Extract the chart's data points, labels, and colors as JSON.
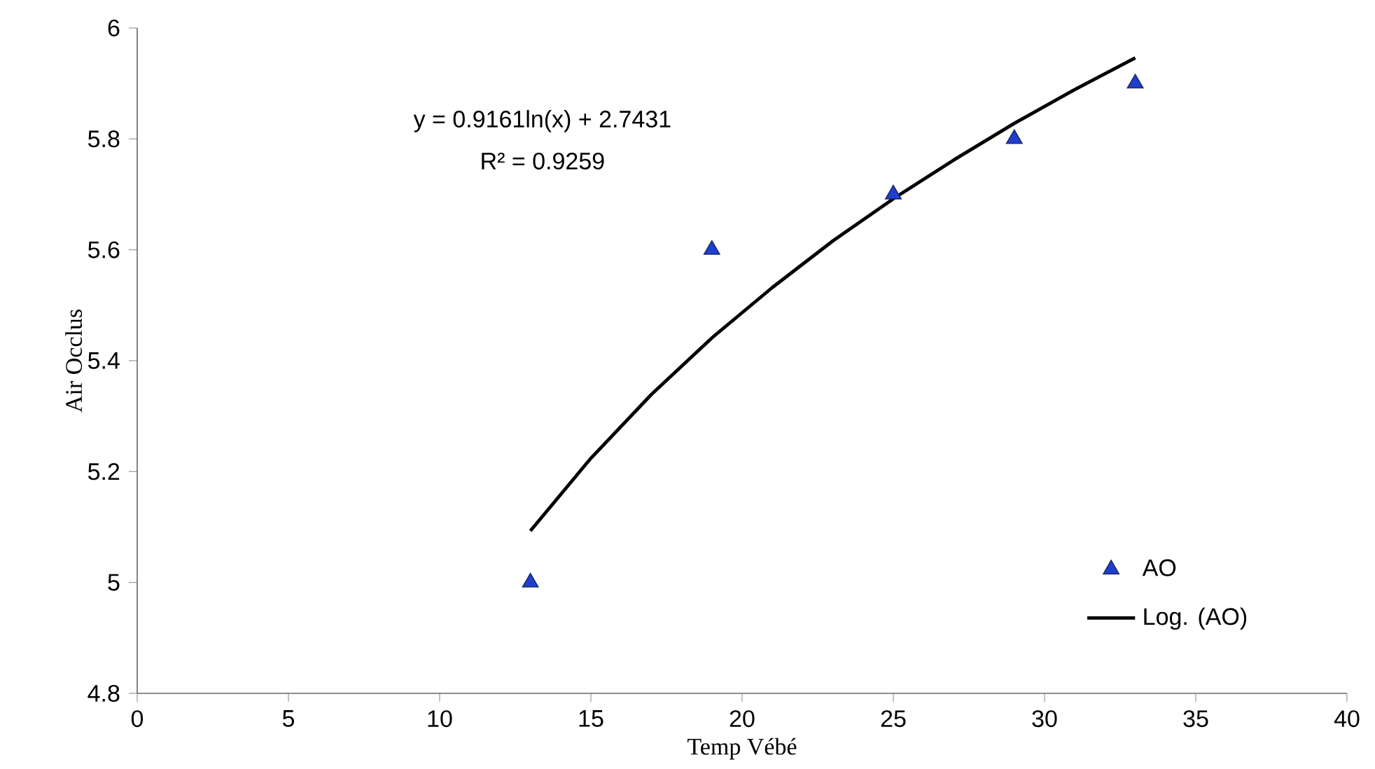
{
  "chart_data": {
    "type": "scatter",
    "xlabel": "Temp  Vébé",
    "ylabel": "Air Occlus",
    "xlim": [
      0,
      40
    ],
    "xticks": [
      0,
      5,
      10,
      15,
      20,
      25,
      30,
      35,
      40
    ],
    "ylim": [
      4.8,
      6
    ],
    "yticks": [
      4.8,
      5,
      5.2,
      5.4,
      5.6,
      5.8,
      6
    ],
    "grid": false,
    "legend": "bottom right",
    "annotations": [
      "y = 0.9161ln(x) + 2.7431",
      "R² = 0.9259"
    ],
    "series": [
      {
        "name": "AO",
        "marker": "triangle",
        "color": "#1f3fd0",
        "x": [
          13,
          19,
          25,
          29,
          33
        ],
        "values": [
          5.0,
          5.6,
          5.7,
          5.8,
          5.9
        ]
      },
      {
        "name": "Log. (AO)",
        "type": "line",
        "marker": "none",
        "line_style": "solid",
        "color": "#000000",
        "x": [
          13,
          15,
          17,
          19,
          21,
          23,
          25,
          27,
          29,
          31,
          33
        ],
        "values": [
          5.093,
          5.224,
          5.339,
          5.441,
          5.532,
          5.616,
          5.692,
          5.762,
          5.828,
          5.889,
          5.946
        ]
      }
    ]
  }
}
